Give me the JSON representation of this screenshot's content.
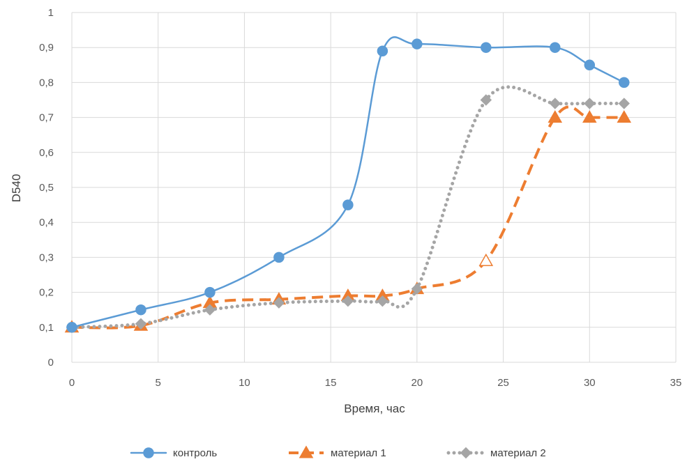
{
  "chart_data": {
    "type": "line",
    "title": "",
    "xlabel": "Время, час",
    "ylabel": "D540",
    "xlim": [
      0,
      35
    ],
    "ylim": [
      0,
      1
    ],
    "x_ticks": [
      "0",
      "5",
      "10",
      "15",
      "20",
      "25",
      "30",
      "35"
    ],
    "y_ticks": [
      "0",
      "0,1",
      "0,2",
      "0,3",
      "0,4",
      "0,5",
      "0,6",
      "0,7",
      "0,8",
      "0,9",
      "1"
    ],
    "grid": true,
    "legend_position": "bottom",
    "series": [
      {
        "name": "контроль",
        "color": "#5B9BD5",
        "line_style": "solid",
        "marker": "circle",
        "smooth": true,
        "x": [
          0,
          4,
          8,
          12,
          16,
          18,
          20,
          24,
          28,
          30,
          32
        ],
        "y": [
          0.1,
          0.15,
          0.2,
          0.3,
          0.45,
          0.89,
          0.91,
          0.9,
          0.9,
          0.85,
          0.8
        ]
      },
      {
        "name": "материал 1",
        "color": "#ED7D31",
        "line_style": "dashed",
        "marker": "triangle",
        "smooth": true,
        "x": [
          0,
          4,
          8,
          12,
          16,
          18,
          20,
          24,
          28,
          30,
          32
        ],
        "y": [
          0.1,
          0.105,
          0.17,
          0.18,
          0.19,
          0.19,
          0.21,
          0.29,
          0.7,
          0.7,
          0.7
        ],
        "hollow_marker_x": [
          24
        ]
      },
      {
        "name": "материал 2",
        "color": "#A5A5A5",
        "line_style": "dotted",
        "marker": "diamond",
        "smooth": true,
        "x": [
          0,
          4,
          8,
          12,
          16,
          18,
          20,
          24,
          28,
          30,
          32
        ],
        "y": [
          0.1,
          0.11,
          0.15,
          0.17,
          0.175,
          0.175,
          0.21,
          0.75,
          0.74,
          0.74,
          0.74
        ]
      }
    ]
  }
}
